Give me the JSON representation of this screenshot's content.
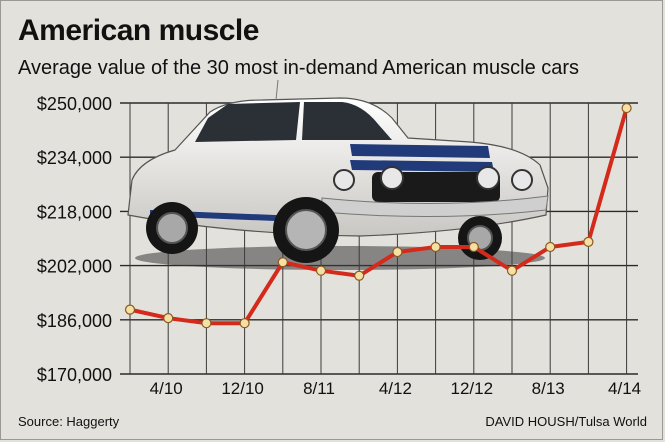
{
  "title": "American muscle",
  "subtitle": "Average value of the 30 most in-demand American muscle cars",
  "source": "Source: Haggerty",
  "credit": "DAVID HOUSH/Tulsa World",
  "chart_data": {
    "type": "line",
    "title": "American muscle",
    "subtitle": "Average value of the 30 most in-demand American muscle cars",
    "xlabel": "",
    "ylabel": "",
    "ylim": [
      170000,
      250000
    ],
    "y_ticks": [
      "$250,000",
      "$234,000",
      "$218,000",
      "$202,000",
      "$186,000",
      "$170,000"
    ],
    "y_tick_values": [
      250000,
      234000,
      218000,
      202000,
      186000,
      170000
    ],
    "x_tick_labels": [
      "4/10",
      "12/10",
      "8/11",
      "4/12",
      "12/12",
      "8/13",
      "4/14"
    ],
    "grid": true,
    "line_color": "#d42a1c",
    "marker_fill": "#f6dfa4",
    "series": [
      {
        "values": [
          189000,
          186500,
          185000,
          185000,
          203000,
          200500,
          199000,
          206000,
          207500,
          207500,
          200500,
          207500,
          209000,
          248500
        ]
      }
    ]
  }
}
